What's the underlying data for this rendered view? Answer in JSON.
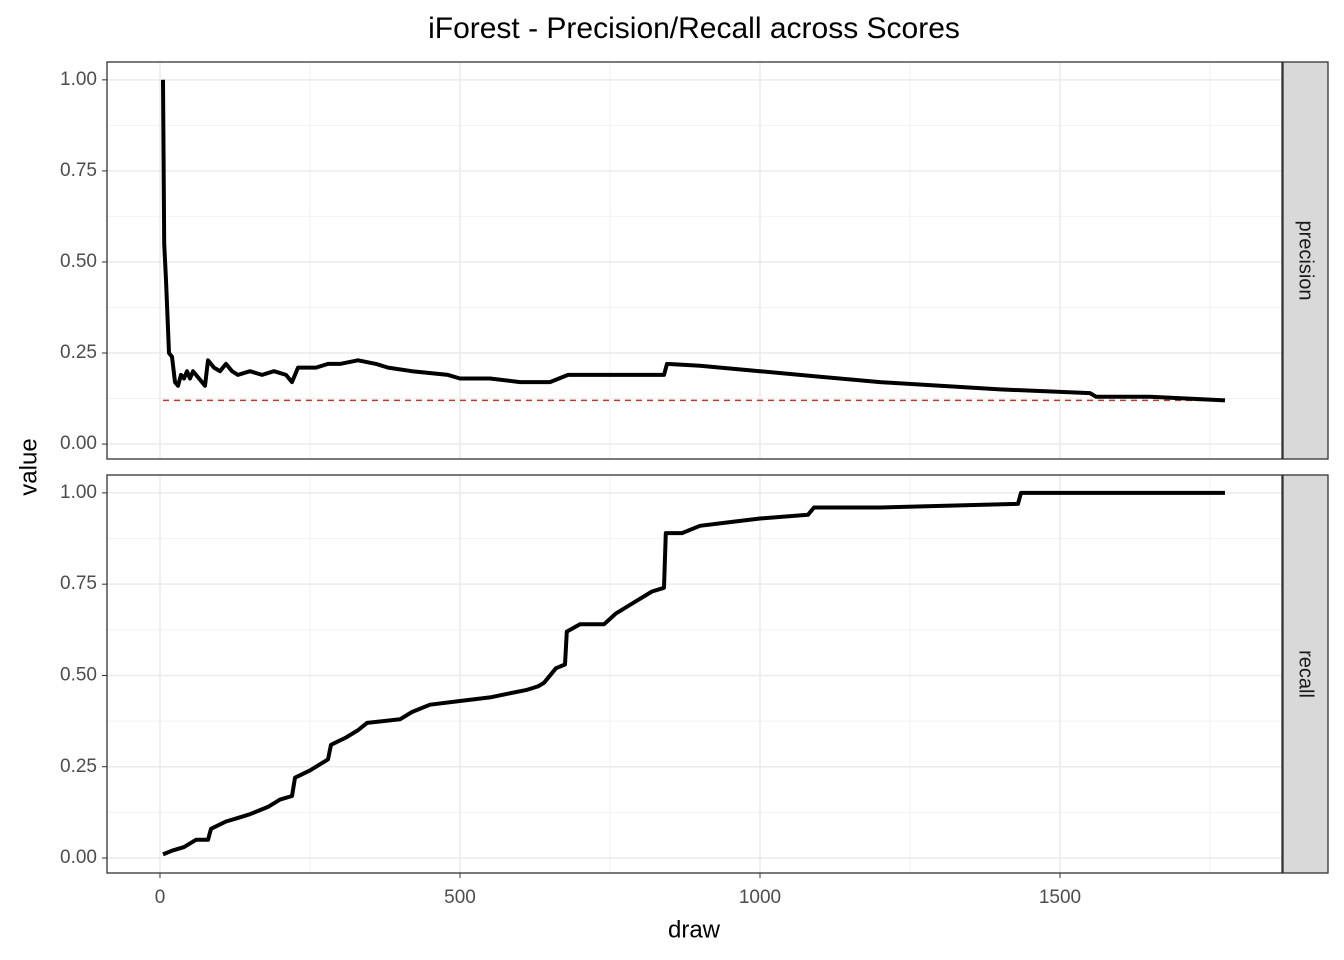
{
  "chart_data": {
    "type": "line",
    "title": "iForest - Precision/Recall across Scores",
    "x_label": "draw",
    "y_label": "value",
    "xlim": [
      -88.3,
      1870
    ],
    "xticks": [
      0,
      500,
      1000,
      1500
    ],
    "minor_xticks": [
      250,
      750,
      1250,
      1750
    ],
    "grid": true,
    "facets": [
      {
        "label": "precision",
        "ylim": [
          -0.041,
          1.049
        ],
        "yticks": [
          {
            "value": 0,
            "label": "0.00"
          },
          0.25,
          {
            "value": 0.5,
            "label": "0.50"
          },
          0.75,
          {
            "value": 1,
            "label": "1.00"
          }
        ],
        "minor_yticks": [
          0.125,
          0.375,
          0.625,
          0.875
        ],
        "color": "#000000",
        "reference": {
          "value": 0.12,
          "color": "#c0392b"
        },
        "x": [
          5,
          7,
          10,
          15,
          20,
          25,
          30,
          35,
          40,
          45,
          50,
          55,
          60,
          70,
          75,
          80,
          90,
          100,
          110,
          120,
          130,
          150,
          170,
          190,
          210,
          220,
          230,
          260,
          280,
          300,
          330,
          360,
          380,
          420,
          480,
          500,
          550,
          600,
          650,
          680,
          750,
          840,
          845,
          900,
          1000,
          1100,
          1200,
          1300,
          1400,
          1550,
          1560,
          1650,
          1775
        ],
        "values": [
          1.0,
          0.55,
          0.45,
          0.25,
          0.24,
          0.17,
          0.16,
          0.19,
          0.18,
          0.2,
          0.18,
          0.2,
          0.19,
          0.17,
          0.16,
          0.23,
          0.21,
          0.2,
          0.22,
          0.2,
          0.19,
          0.2,
          0.19,
          0.2,
          0.19,
          0.17,
          0.21,
          0.21,
          0.22,
          0.22,
          0.23,
          0.22,
          0.21,
          0.2,
          0.19,
          0.18,
          0.18,
          0.17,
          0.17,
          0.19,
          0.19,
          0.19,
          0.22,
          0.215,
          0.2,
          0.185,
          0.17,
          0.16,
          0.15,
          0.14,
          0.13,
          0.13,
          0.12
        ]
      },
      {
        "label": "recall",
        "ylim": [
          -0.041,
          1.049
        ],
        "yticks": [
          {
            "value": 0,
            "label": "0.00"
          },
          0.25,
          {
            "value": 0.5,
            "label": "0.50"
          },
          0.75,
          {
            "value": 1,
            "label": "1.00"
          }
        ],
        "minor_yticks": [
          0.125,
          0.375,
          0.625,
          0.875
        ],
        "color": "#000000",
        "x": [
          5,
          20,
          40,
          60,
          80,
          85,
          110,
          130,
          150,
          180,
          200,
          220,
          225,
          250,
          280,
          285,
          310,
          330,
          345,
          400,
          420,
          450,
          500,
          550,
          580,
          610,
          630,
          640,
          660,
          675,
          678,
          700,
          740,
          760,
          790,
          820,
          840,
          843,
          870,
          900,
          950,
          1000,
          1080,
          1090,
          1200,
          1430,
          1435,
          1775
        ],
        "values": [
          0.01,
          0.02,
          0.03,
          0.05,
          0.05,
          0.08,
          0.1,
          0.11,
          0.12,
          0.14,
          0.16,
          0.17,
          0.22,
          0.24,
          0.27,
          0.31,
          0.33,
          0.35,
          0.37,
          0.38,
          0.4,
          0.42,
          0.43,
          0.44,
          0.45,
          0.46,
          0.47,
          0.48,
          0.52,
          0.53,
          0.62,
          0.64,
          0.64,
          0.67,
          0.7,
          0.73,
          0.74,
          0.89,
          0.89,
          0.91,
          0.92,
          0.93,
          0.94,
          0.96,
          0.96,
          0.97,
          1.0,
          1.0
        ]
      }
    ]
  }
}
